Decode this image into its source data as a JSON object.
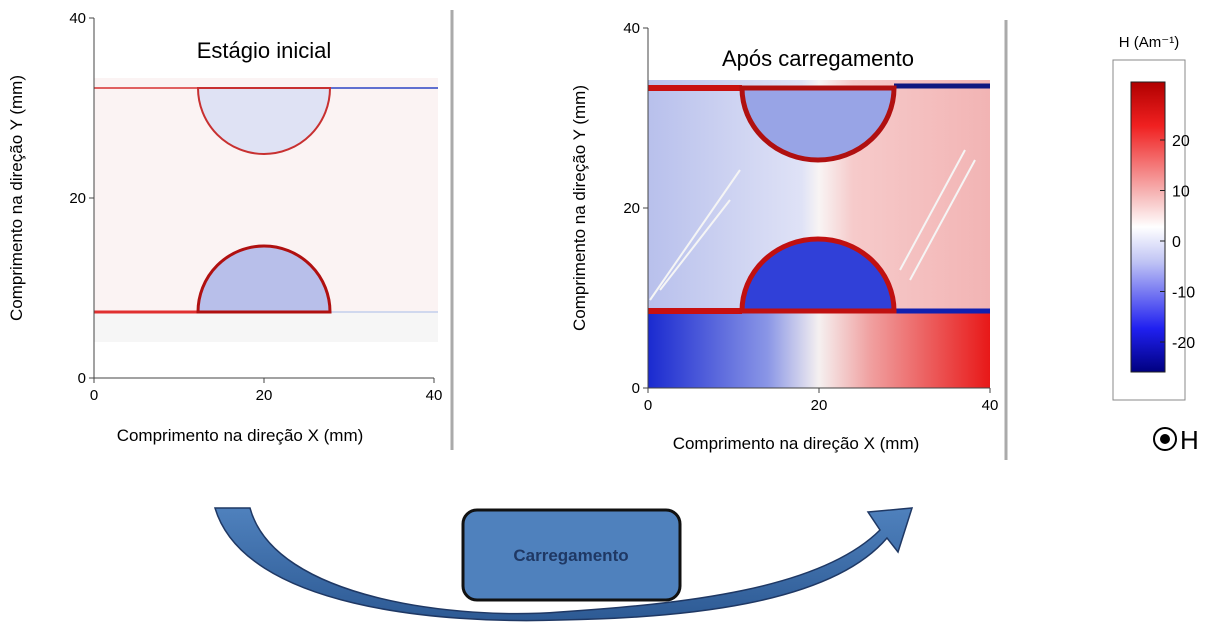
{
  "panels": [
    {
      "title": "Estágio inicial",
      "x_label": "Comprimento na direção X (mm)",
      "y_label": "Comprimento na direção Y (mm)",
      "xticks": [
        0,
        20,
        40
      ],
      "yticks": [
        0,
        20,
        40
      ]
    },
    {
      "title": "Após carregamento",
      "x_label": "Comprimento na direção X (mm)",
      "y_label": "Comprimento na direção Y (mm)",
      "xticks": [
        0,
        20,
        40
      ],
      "yticks": [
        0,
        20,
        40
      ]
    }
  ],
  "colorbar": {
    "title": "H (Am⁻¹)",
    "ticks": [
      20,
      10,
      0,
      -10,
      -20
    ]
  },
  "symbol": {
    "label": "H"
  },
  "process": {
    "label": "Carregamento"
  }
}
